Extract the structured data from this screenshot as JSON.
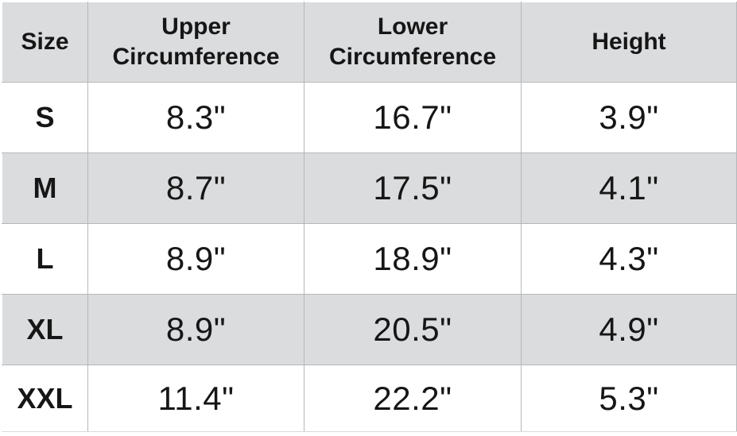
{
  "chart_data": {
    "type": "table",
    "columns": [
      "Size",
      "Upper Circumference",
      "Lower Circumference",
      "Height"
    ],
    "rows": [
      [
        "S",
        "8.3\"",
        "16.7\"",
        "3.9\""
      ],
      [
        "M",
        "8.7\"",
        "17.5\"",
        "4.1\""
      ],
      [
        "L",
        "8.9\"",
        "18.9\"",
        "4.3\""
      ],
      [
        "XL",
        "8.9\"",
        "20.5\"",
        "4.9\""
      ],
      [
        "XXL",
        "11.4\"",
        "22.2\"",
        "5.3\""
      ]
    ],
    "layout": {
      "shaded_row_labels": [
        "M",
        "XL"
      ],
      "header_shaded": true
    }
  },
  "colors": {
    "page_bg": "#ffffff",
    "cell_bg": "#ffffff",
    "shaded_bg": "#dbdcde",
    "border": "#b5b8ba",
    "outer_bottom": "#d9dbdb",
    "text": "#161616"
  }
}
